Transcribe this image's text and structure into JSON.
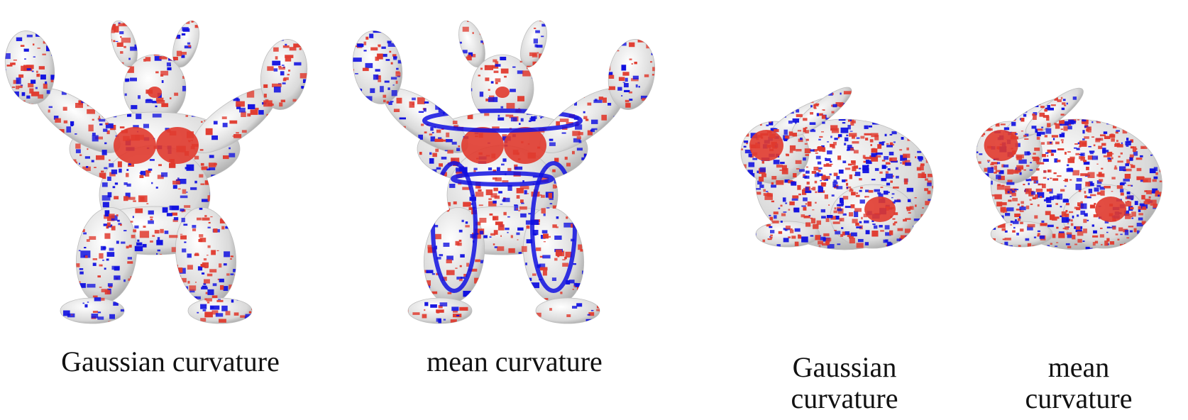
{
  "figure": {
    "captions": {
      "armadillo_gaussian": "Gaussian curvature",
      "armadillo_mean": "mean curvature",
      "bunny_gaussian_line1": "Gaussian",
      "bunny_gaussian_line2": "curvature",
      "bunny_mean_line1": "mean",
      "bunny_mean_line2": "curvature"
    },
    "colors": {
      "positive": "#e03a2e",
      "negative": "#1010e0",
      "surface": "#d9d9d9"
    }
  }
}
